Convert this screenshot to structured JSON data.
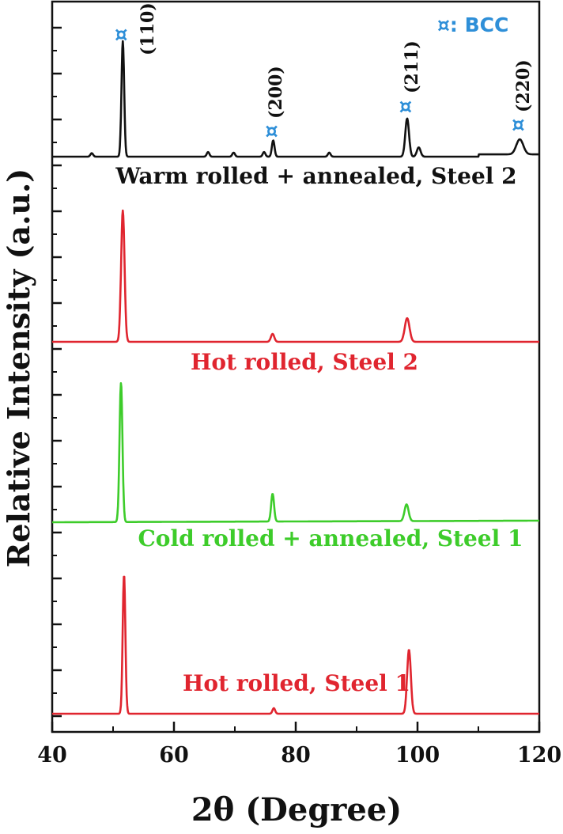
{
  "chart_data": {
    "type": "line",
    "xlabel": "2θ (Degree)",
    "ylabel": "Relative Intensity (a.u.)",
    "xlim": [
      40,
      120
    ],
    "x_ticks": [
      40,
      60,
      80,
      100,
      120
    ],
    "legend": {
      "symbol": "¤",
      "text": ": BCC",
      "color": "#2e8fd8"
    },
    "series": [
      {
        "name": "Warm rolled + annealed, Steel 2",
        "color": "#111111",
        "baseline": 0.0,
        "peaks": [
          {
            "x": 46.5,
            "h": 0.03
          },
          {
            "x": 51.6,
            "h": 1.0
          },
          {
            "x": 65.6,
            "h": 0.04
          },
          {
            "x": 69.8,
            "h": 0.035
          },
          {
            "x": 74.8,
            "h": 0.04
          },
          {
            "x": 76.3,
            "h": 0.14
          },
          {
            "x": 85.5,
            "h": 0.035
          },
          {
            "x": 98.3,
            "h": 0.33
          },
          {
            "x": 100.2,
            "h": 0.08
          },
          {
            "x": 116.8,
            "h": 0.13
          }
        ]
      },
      {
        "name": "Hot rolled, Steel 2",
        "color": "#e0252f",
        "baseline": 0.0,
        "peaks": [
          {
            "x": 51.6,
            "h": 1.0
          },
          {
            "x": 76.2,
            "h": 0.06
          },
          {
            "x": 98.3,
            "h": 0.18
          }
        ]
      },
      {
        "name": "Cold rolled + annealed, Steel 1",
        "color": "#3dcc2a",
        "baseline": 0.0,
        "peaks": [
          {
            "x": 51.3,
            "h": 1.0
          },
          {
            "x": 76.2,
            "h": 0.2
          },
          {
            "x": 98.2,
            "h": 0.12
          }
        ]
      },
      {
        "name": "Hot rolled, Steel 1",
        "color": "#e0252f",
        "baseline": 0.0,
        "peaks": [
          {
            "x": 51.8,
            "h": 1.0
          },
          {
            "x": 76.4,
            "h": 0.04
          },
          {
            "x": 98.6,
            "h": 0.46
          }
        ]
      }
    ],
    "peak_annotations": [
      {
        "label": "(110)",
        "x": 51.6
      },
      {
        "label": "(200)",
        "x": 76.3
      },
      {
        "label": "(211)",
        "x": 98.3
      },
      {
        "label": "(220)",
        "x": 116.8
      }
    ]
  }
}
